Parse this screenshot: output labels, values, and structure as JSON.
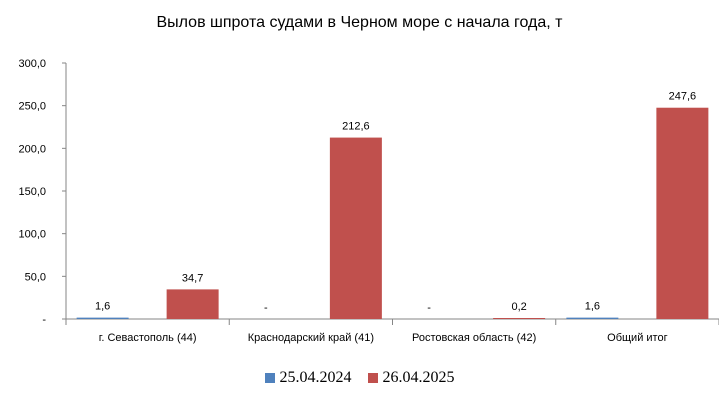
{
  "chart_data": {
    "type": "bar",
    "title": "Вылов шпрота судами в Черном море с начала  года, т",
    "xlabel": "",
    "ylabel": "",
    "ylim": [
      0,
      300
    ],
    "yticks": [
      0,
      50,
      100,
      150,
      200,
      250,
      300
    ],
    "ytick_labels": [
      "-",
      "50,0",
      "100,0",
      "150,0",
      "200,0",
      "250,0",
      "300,0"
    ],
    "categories": [
      "г. Севастополь (44)",
      "Краснодарский край (41)",
      "Ростовская область (42)",
      "Общий итог"
    ],
    "series": [
      {
        "name": "25.04.2024",
        "color": "#4f81bd",
        "values": [
          1.6,
          0,
          0,
          1.6
        ],
        "labels": [
          "1,6",
          "-",
          "-",
          "1,6"
        ]
      },
      {
        "name": "26.04.2025",
        "color": "#c0504d",
        "values": [
          34.7,
          212.6,
          0.2,
          247.6
        ],
        "labels": [
          "34,7",
          "212,6",
          "0,2",
          "247,6"
        ]
      }
    ],
    "grid": false,
    "legend_position": "bottom"
  }
}
